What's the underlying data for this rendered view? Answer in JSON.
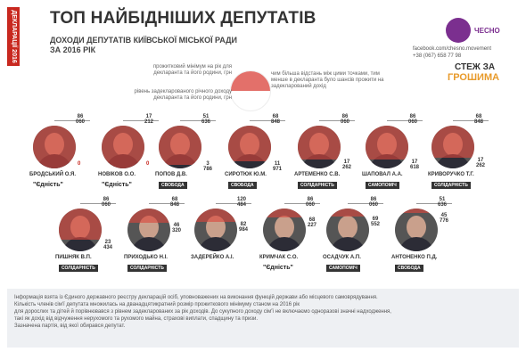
{
  "side_label": "ДЕКЛАРАЦІЇ 2016",
  "title": "ТОП НАЙБІДНІШИХ ДЕПУТАТІВ",
  "subtitle_line1": "ДОХОДИ ДЕПУТАТІВ КИЇВСЬКОЇ МІСЬКОЇ РАДИ",
  "subtitle_line2": "ЗА 2016 РІК",
  "logo_text": "ЧЕСНО",
  "facebook": "facebook.com/chesno.movement",
  "phone": "+38 (067) 658 77 98",
  "stezh_line1": "СТЕЖ ЗА",
  "stezh_line2": "ГРОШИМА",
  "legend": {
    "top_left": "прожитковий мінімум на рік для декларанта та його родини, грн",
    "bottom_left": "рівень задекларованого річного доходу декларанта та його родини, грн",
    "right": "чим більша відстань між цими точками, тим менше в декларанта було шансів прожити на задекларований дохід"
  },
  "deputies": [
    {
      "name": "БРОДСЬКИЙ О.Я.",
      "min": "86 060",
      "income": "0",
      "party": "\"Єдність\"",
      "income_red": true
    },
    {
      "name": "НОВІКОВ О.О.",
      "min": "17 212",
      "income": "0",
      "party": "\"Єдність\"",
      "income_red": true
    },
    {
      "name": "ПОПОВ Д.В.",
      "min": "51 636",
      "income": "3 786",
      "party": "СВОБОДА"
    },
    {
      "name": "СИРОТЮК Ю.М.",
      "min": "68 848",
      "income": "11 971",
      "party": "СВОБОДА"
    },
    {
      "name": "АРТЕМЕНКО С.В.",
      "min": "86 060",
      "income": "17 262",
      "party": "СОЛІДАРНІСТЬ"
    },
    {
      "name": "ШАПОВАЛ А.А.",
      "min": "86 060",
      "income": "17 618",
      "party": "САМОПОМІЧ"
    },
    {
      "name": "КРИВОРУЧКО Т.Г.",
      "min": "68 848",
      "income": "17 262",
      "party": "СОЛІДАРНІСТЬ"
    },
    {
      "name": "ПИШНЯК В.П.",
      "min": "86 060",
      "income": "23 434",
      "party": "СОЛІДАРНІСТЬ"
    },
    {
      "name": "ПРИХОДЬКО Н.І.",
      "min": "68 848",
      "income": "46 320",
      "party": "СОЛІДАРНІСТЬ"
    },
    {
      "name": "ЗАДЕРЕЙКО А.І.",
      "min": "120 484",
      "income": "82 984",
      "party": ""
    },
    {
      "name": "КРИМЧАК С.О.",
      "min": "86 060",
      "income": "68 227",
      "party": "\"Єдність\""
    },
    {
      "name": "ОСАДЧУК А.П.",
      "min": "86 060",
      "income": "69 552",
      "party": "САМОПОМІЧ"
    },
    {
      "name": "АНТОНЕНКО П.Д.",
      "min": "51 636",
      "income": "45 776",
      "party": "СВОБОДА"
    }
  ],
  "footer": [
    "Інформація взята із Єдиного державного реєстру декларацій осіб, уповноважених на виконання функцій держави або місцевого самоврядування.",
    "Кількість членів сім'ї депутата множилась на дванадцятикратний розмір прожиткового мінімуму станом на 2016 рік",
    "для дорослих та дітей й порівнювався з рівнем задекларованих за рік доходів. До сукупного доходу сім'ї не включаємо одноразові значні надходження,",
    "такі як дохід від відчуження нерухомого та рухомого майна, страхові виплати, спадщину та призи.",
    "Зазначена партія, від якої обирався депутат."
  ]
}
